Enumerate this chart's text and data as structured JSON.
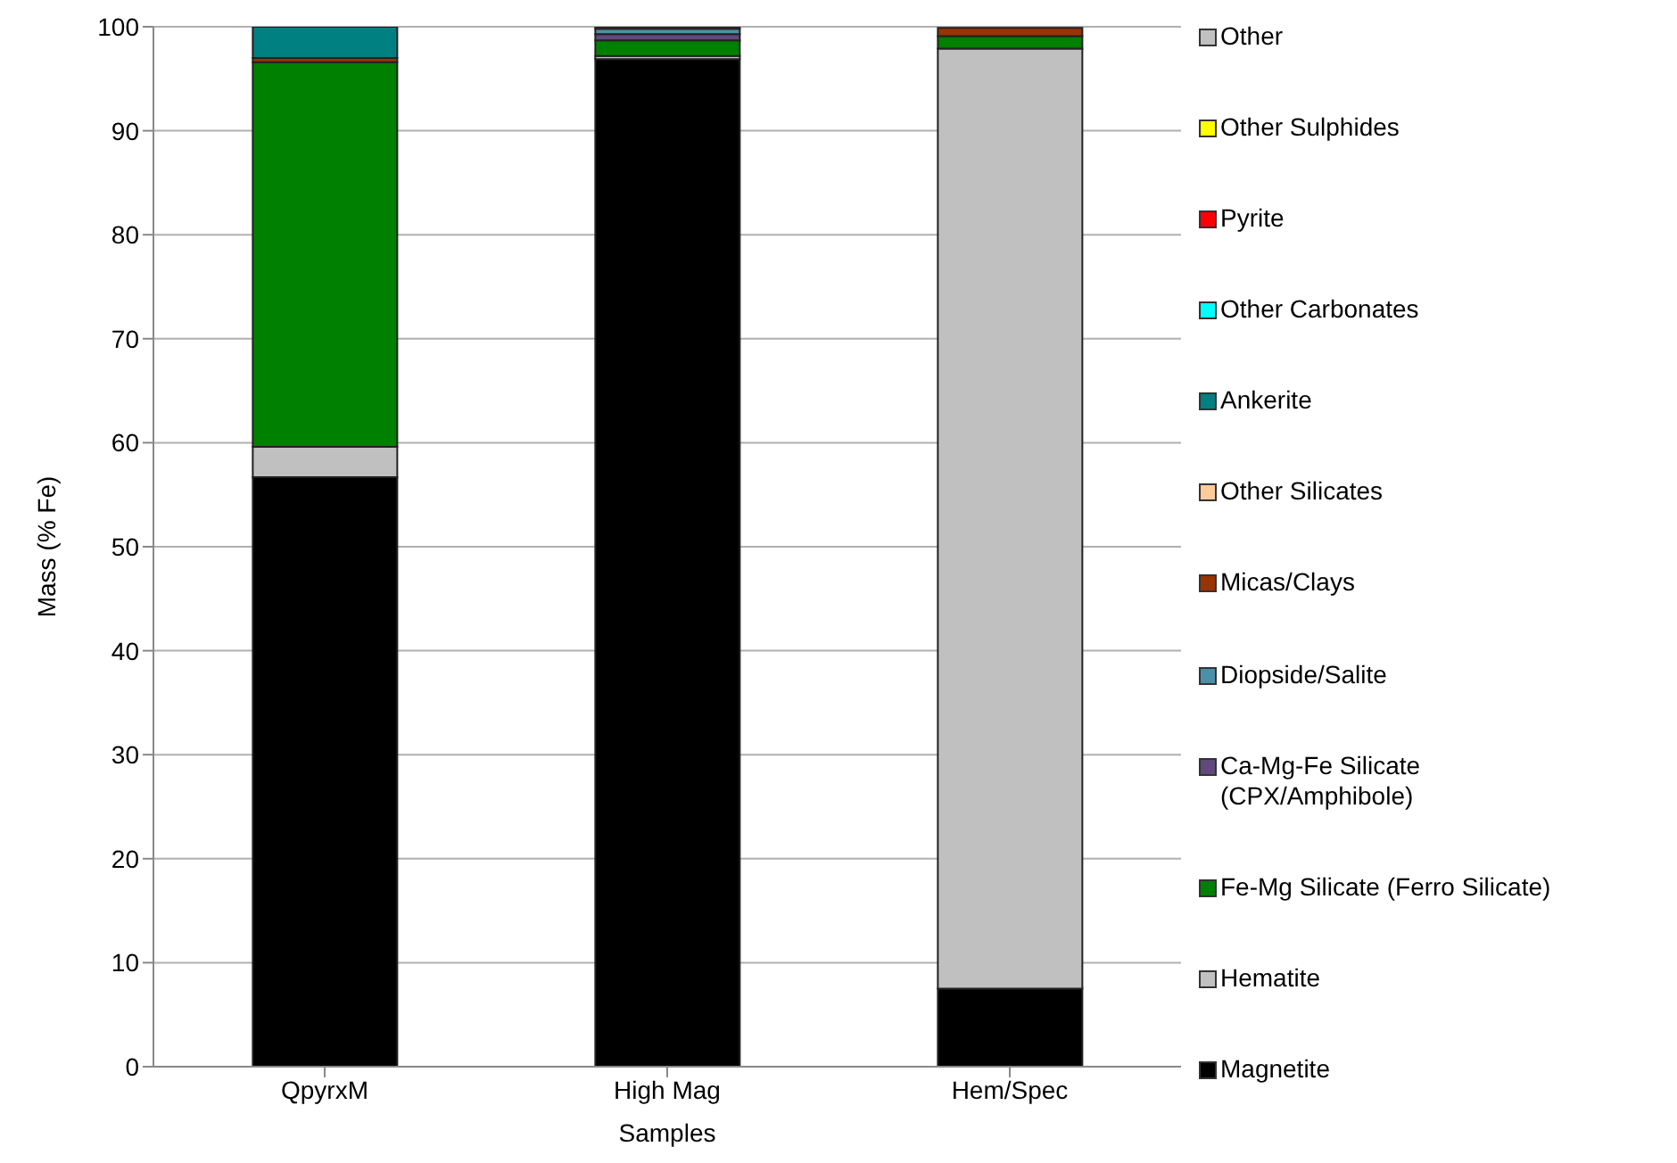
{
  "chart_data": {
    "type": "bar",
    "stacked": true,
    "xlabel": "Samples",
    "ylabel": "Mass (% Fe)",
    "categories": [
      "QpyrxM",
      "High Mag",
      "Hem/Spec"
    ],
    "ylim": [
      0,
      100
    ],
    "yticks": [
      0,
      10,
      20,
      30,
      40,
      50,
      60,
      70,
      80,
      90,
      100
    ],
    "grid": "y",
    "legend": "right",
    "series": [
      {
        "name": "Magnetite",
        "color": "#000000",
        "values": [
          56.7,
          96.9,
          7.5
        ]
      },
      {
        "name": "Hematite",
        "color": "#c0c0c0",
        "values": [
          2.9,
          0.3,
          90.4
        ]
      },
      {
        "name": "Fe-Mg Silicate (Ferro Silicate)",
        "color": "#008000",
        "values": [
          37.0,
          1.5,
          1.2
        ]
      },
      {
        "name": "Ca-Mg-Fe Silicate (CPX/Amphibole)",
        "color": "#604a7b",
        "values": [
          0,
          0.6,
          0
        ]
      },
      {
        "name": "Diopside/Salite",
        "color": "#4a90a8",
        "values": [
          0,
          0.5,
          0
        ]
      },
      {
        "name": "Micas/Clays",
        "color": "#993300",
        "values": [
          0.4,
          0.2,
          0.8
        ]
      },
      {
        "name": "Other Silicates",
        "color": "#ffcc99",
        "values": [
          0,
          0,
          0
        ]
      },
      {
        "name": "Ankerite",
        "color": "#008080",
        "values": [
          3.0,
          0,
          0
        ]
      },
      {
        "name": "Other Carbonates",
        "color": "#00ffff",
        "values": [
          0,
          0,
          0
        ]
      },
      {
        "name": "Pyrite",
        "color": "#ff0000",
        "values": [
          0,
          0,
          0
        ]
      },
      {
        "name": "Other Sulphides",
        "color": "#ffff00",
        "values": [
          0,
          0,
          0
        ]
      },
      {
        "name": "Other",
        "color": "#c0c0c0",
        "values": [
          0,
          0,
          0
        ]
      }
    ]
  }
}
